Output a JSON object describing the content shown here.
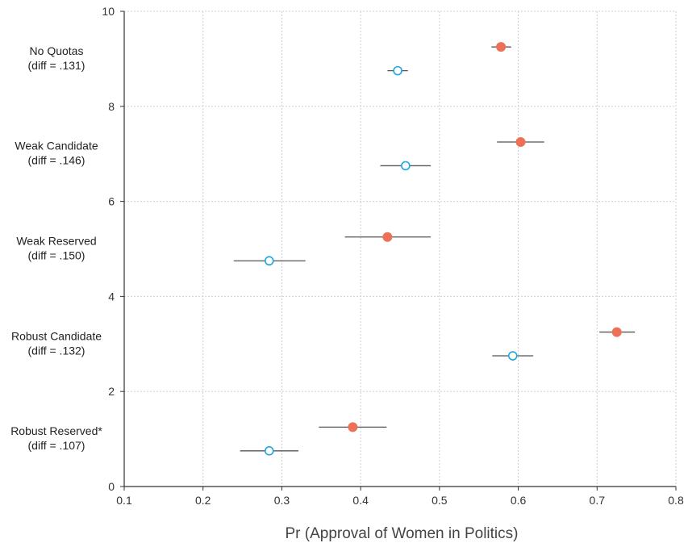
{
  "chart_data": {
    "type": "scatter",
    "xlabel": "Pr (Approval of Women in Politics)",
    "ylabel": "",
    "xlim": [
      0.1,
      0.8
    ],
    "ylim": [
      0,
      10
    ],
    "x_ticks": [
      "0.1",
      "0.2",
      "0.3",
      "0.4",
      "0.5",
      "0.6",
      "0.7",
      "0.8"
    ],
    "y_ticks": [
      "0",
      "2",
      "4",
      "6",
      "8",
      "10"
    ],
    "grid": true,
    "groups": [
      {
        "label_line1": "No Quotas",
        "label_line2": "(diff = .131)",
        "filled": {
          "y": 9.25,
          "x": 0.578,
          "lo": 0.566,
          "hi": 0.591
        },
        "hollow": {
          "y": 8.75,
          "x": 0.447,
          "lo": 0.434,
          "hi": 0.46
        }
      },
      {
        "label_line1": "Weak Candidate",
        "label_line2": "(diff = .146)",
        "filled": {
          "y": 7.25,
          "x": 0.603,
          "lo": 0.573,
          "hi": 0.633
        },
        "hollow": {
          "y": 6.75,
          "x": 0.457,
          "lo": 0.425,
          "hi": 0.489
        }
      },
      {
        "label_line1": "Weak Reserved",
        "label_line2": "(diff = .150)",
        "filled": {
          "y": 5.25,
          "x": 0.434,
          "lo": 0.38,
          "hi": 0.489
        },
        "hollow": {
          "y": 4.75,
          "x": 0.284,
          "lo": 0.239,
          "hi": 0.33
        }
      },
      {
        "label_line1": "Robust Candidate",
        "label_line2": "(diff = .132)",
        "filled": {
          "y": 3.25,
          "x": 0.725,
          "lo": 0.703,
          "hi": 0.748
        },
        "hollow": {
          "y": 2.75,
          "x": 0.593,
          "lo": 0.567,
          "hi": 0.619
        }
      },
      {
        "label_line1": "Robust Reserved*",
        "label_line2": "(diff = .107)",
        "filled": {
          "y": 1.25,
          "x": 0.39,
          "lo": 0.347,
          "hi": 0.433
        },
        "hollow": {
          "y": 0.75,
          "x": 0.284,
          "lo": 0.247,
          "hi": 0.321
        }
      }
    ],
    "colors": {
      "filled": "#ec7157",
      "hollow": "#1ea8de",
      "whisker": "#555555",
      "axis": "#333333",
      "grid": "#cfcfcf"
    }
  }
}
